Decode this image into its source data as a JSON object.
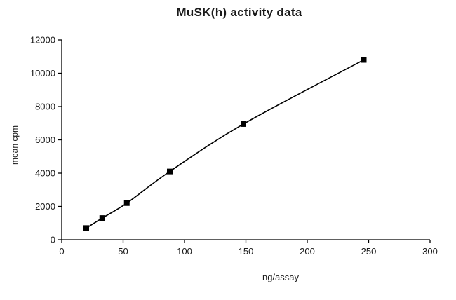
{
  "chart_data": {
    "type": "line",
    "title": "MuSK(h) activity data",
    "xlabel": "ng/assay",
    "ylabel": "mean cpm",
    "x": [
      20,
      33,
      53,
      88,
      148,
      246
    ],
    "values": [
      700,
      1300,
      2200,
      4100,
      6950,
      10800
    ],
    "xlim": [
      0,
      300
    ],
    "ylim": [
      0,
      12000
    ],
    "xticks": [
      0,
      50,
      100,
      150,
      200,
      250,
      300
    ],
    "yticks": [
      0,
      2000,
      4000,
      6000,
      8000,
      10000,
      12000
    ],
    "grid": false,
    "legend": "none",
    "marker": "square",
    "marker_size": 8,
    "line_color": "#000000",
    "marker_color": "#000000",
    "axis_color": "#000000",
    "background": "#ffffff"
  }
}
